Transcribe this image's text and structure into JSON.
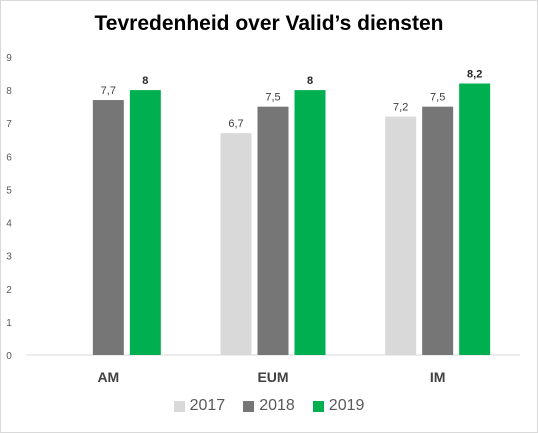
{
  "chart_data": {
    "type": "bar",
    "title": "Tevredenheid over Valid’s diensten",
    "categories": [
      "AM",
      "EUM",
      "IM"
    ],
    "series": [
      {
        "name": "2017",
        "values": [
          null,
          6.7,
          7.2
        ],
        "labels": [
          "",
          "6,7",
          "7,2"
        ],
        "color": "#d9d9d9",
        "bold_labels": false
      },
      {
        "name": "2018",
        "values": [
          7.7,
          7.5,
          7.5
        ],
        "labels": [
          "7,7",
          "7,5",
          "7,5"
        ],
        "color": "#767676",
        "bold_labels": false
      },
      {
        "name": "2019",
        "values": [
          8,
          8,
          8.2
        ],
        "labels": [
          "8",
          "8",
          "8,2"
        ],
        "color": "#00b050",
        "bold_labels": true
      }
    ],
    "ylim": [
      0,
      9
    ],
    "yticks": [
      "0",
      "1",
      "2",
      "3",
      "4",
      "5",
      "6",
      "7",
      "8",
      "9"
    ],
    "grid": false,
    "xlabel": "",
    "ylabel": "",
    "legend_position": "bottom"
  }
}
